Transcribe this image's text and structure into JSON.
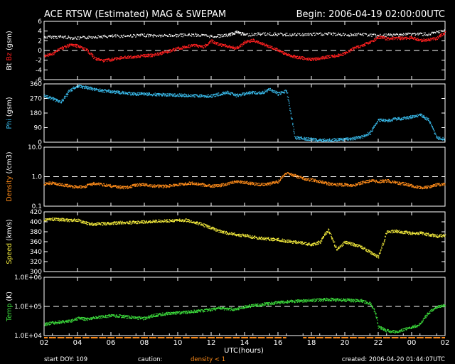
{
  "header": {
    "title": "ACE RTSW (Estimated) MAG & SWEPAM",
    "begin": "Begin: 2006-04-19 02:00:00UTC"
  },
  "footer": {
    "start_doy": "start DOY: 109",
    "caution_label": "caution:",
    "caution_value": "density < 1",
    "created": "created: 2006-04-20 01:44:07UTC"
  },
  "colors": {
    "bt": "#ffffff",
    "bz": "#ff2020",
    "phi": "#38b8e8",
    "density": "#ff8c1a",
    "speed": "#f2ea3c",
    "temp": "#3cdc3c",
    "frame": "#ffffff",
    "caution": "#ff8c1a"
  },
  "chart_data": {
    "type": "scatter",
    "x_axis": {
      "label": "UTC(hours)",
      "tick_labels": [
        "02",
        "04",
        "06",
        "08",
        "10",
        "12",
        "14",
        "16",
        "18",
        "20",
        "22",
        "00",
        "02"
      ]
    },
    "panels": [
      {
        "id": "mag",
        "ylabel_parts": [
          {
            "text": "Bt",
            "color": "#ffffff"
          },
          {
            "text": "Bz",
            "color": "#ff2020"
          },
          {
            "text": "(gsm)",
            "color": "#ffffff"
          }
        ],
        "ylim": [
          -6,
          6
        ],
        "yticks": [
          "6",
          "4",
          "2",
          "0",
          "-2",
          "-4",
          "-6"
        ],
        "reference_line": 0,
        "series": [
          {
            "name": "Bt",
            "color": "#ffffff",
            "x": [
              0,
              1,
              2,
              3,
              4,
              5,
              6,
              7,
              8,
              9,
              10,
              11,
              11.5,
              12,
              13,
              14,
              15,
              16,
              17,
              18,
              19,
              20,
              21,
              22,
              23,
              24
            ],
            "y": [
              2.8,
              2.9,
              2.6,
              2.9,
              3.0,
              3.1,
              3.2,
              3.1,
              3.2,
              3.3,
              3.0,
              3.2,
              3.9,
              3.3,
              3.5,
              3.4,
              3.3,
              3.4,
              3.5,
              3.3,
              3.4,
              3.1,
              3.3,
              3.5,
              3.4,
              4.2
            ]
          },
          {
            "name": "Bz",
            "color": "#ff2020",
            "x": [
              0,
              0.5,
              1,
              1.5,
              2,
              2.5,
              3,
              3.5,
              4,
              4.5,
              5,
              5.5,
              6,
              6.5,
              7,
              7.5,
              8,
              8.5,
              9,
              9.5,
              10,
              10.5,
              11,
              11.5,
              12,
              12.5,
              13,
              13.5,
              14,
              14.5,
              15,
              15.5,
              16,
              16.5,
              17,
              17.5,
              18,
              18.5,
              19,
              19.5,
              20,
              20.5,
              21,
              21.5,
              22,
              22.5,
              23,
              23.5,
              24
            ],
            "y": [
              -1.0,
              -0.6,
              0.5,
              1.2,
              1.0,
              0.3,
              -1.5,
              -2.0,
              -1.8,
              -1.5,
              -1.3,
              -1.2,
              -1.0,
              -0.9,
              -0.5,
              0.0,
              0.5,
              0.8,
              1.2,
              0.8,
              2.0,
              1.2,
              1.0,
              0.5,
              1.8,
              2.2,
              1.5,
              0.8,
              0.2,
              -0.8,
              -1.2,
              -1.5,
              -1.8,
              -1.5,
              -1.2,
              -1.0,
              -0.5,
              0.5,
              1.0,
              1.8,
              2.8,
              2.5,
              2.6,
              2.6,
              2.7,
              2.2,
              2.3,
              2.6,
              3.8
            ]
          }
        ]
      },
      {
        "id": "phi",
        "ylabel_parts": [
          {
            "text": "Phi",
            "color": "#38b8e8"
          },
          {
            "text": "(gsm)",
            "color": "#ffffff"
          }
        ],
        "ylim": [
          0,
          360
        ],
        "yticks": [
          "360",
          "270",
          "180",
          "90",
          "0"
        ],
        "series": [
          {
            "name": "Phi",
            "color": "#38b8e8",
            "x": [
              0,
              0.5,
              1,
              1.5,
              2,
              2.5,
              3,
              3.5,
              4,
              4.5,
              5,
              5.5,
              6,
              6.5,
              7,
              7.5,
              8,
              8.5,
              9,
              9.5,
              10,
              10.5,
              11,
              11.5,
              12,
              12.5,
              13,
              13.5,
              14,
              14.5,
              15,
              15.5,
              16,
              16.5,
              17,
              17.5,
              18,
              18.5,
              19,
              19.5,
              20,
              20.5,
              21,
              21.5,
              22,
              22.5,
              23,
              23.5,
              24
            ],
            "y": [
              290,
              270,
              250,
              320,
              350,
              340,
              330,
              320,
              315,
              310,
              305,
              300,
              300,
              298,
              296,
              294,
              293,
              291,
              289,
              288,
              287,
              300,
              310,
              290,
              300,
              310,
              305,
              330,
              300,
              320,
              30,
              25,
              20,
              15,
              15,
              18,
              20,
              25,
              35,
              60,
              140,
              135,
              145,
              150,
              160,
              170,
              140,
              30,
              20
            ]
          }
        ]
      },
      {
        "id": "density",
        "ylabel_parts": [
          {
            "text": "Density",
            "color": "#ff8c1a"
          },
          {
            "text": "(/cm3)",
            "color": "#ffffff"
          }
        ],
        "scale": "log",
        "ylim": [
          0.1,
          10.0
        ],
        "yticks": [
          "10.0",
          "1.0",
          "0.1"
        ],
        "reference_line": 1.0,
        "series": [
          {
            "name": "Density",
            "color": "#ff8c1a",
            "x": [
              0,
              0.5,
              1,
              1.5,
              2,
              2.5,
              3,
              3.5,
              4,
              4.5,
              5,
              5.5,
              6,
              6.5,
              7,
              7.5,
              8,
              8.5,
              9,
              9.5,
              10,
              10.5,
              11,
              11.5,
              12,
              12.5,
              13,
              13.5,
              14,
              14.5,
              15,
              15.5,
              16,
              16.5,
              17,
              17.5,
              18,
              18.5,
              19,
              19.5,
              20,
              20.5,
              21,
              21.5,
              22,
              22.5,
              23,
              23.5,
              24
            ],
            "y": [
              0.6,
              0.62,
              0.55,
              0.5,
              0.45,
              0.5,
              0.6,
              0.55,
              0.5,
              0.45,
              0.45,
              0.55,
              0.55,
              0.5,
              0.48,
              0.5,
              0.55,
              0.6,
              0.62,
              0.55,
              0.5,
              0.52,
              0.6,
              0.7,
              0.65,
              0.6,
              0.55,
              0.6,
              0.7,
              1.4,
              1.1,
              0.9,
              0.8,
              0.7,
              0.6,
              0.55,
              0.55,
              0.5,
              0.65,
              0.75,
              0.7,
              0.75,
              0.65,
              0.6,
              0.5,
              0.45,
              0.45,
              0.55,
              0.55
            ]
          }
        ]
      },
      {
        "id": "speed",
        "ylabel_parts": [
          {
            "text": "Speed",
            "color": "#f2ea3c"
          },
          {
            "text": "(km/s)",
            "color": "#ffffff"
          }
        ],
        "ylim": [
          300,
          420
        ],
        "yticks": [
          "420",
          "400",
          "380",
          "360",
          "340",
          "320",
          "300"
        ],
        "series": [
          {
            "name": "Speed",
            "color": "#f2ea3c",
            "x": [
              0,
              0.5,
              1,
              1.5,
              2,
              2.5,
              3,
              3.5,
              4,
              4.5,
              5,
              5.5,
              6,
              6.5,
              7,
              7.5,
              8,
              8.5,
              9,
              9.5,
              10,
              10.5,
              11,
              11.5,
              12,
              12.5,
              13,
              13.5,
              14,
              14.5,
              15,
              15.5,
              16,
              16.5,
              17,
              17.5,
              18,
              18.5,
              19,
              19.5,
              20,
              20.5,
              21,
              21.5,
              22,
              22.5,
              23,
              23.5,
              24
            ],
            "y": [
              405,
              406,
              405,
              404,
              404,
              398,
              396,
              397,
              398,
              399,
              399,
              400,
              401,
              402,
              402,
              403,
              404,
              404,
              400,
              395,
              388,
              382,
              378,
              375,
              373,
              370,
              368,
              366,
              365,
              362,
              360,
              358,
              355,
              360,
              385,
              345,
              360,
              355,
              350,
              340,
              330,
              380,
              382,
              380,
              378,
              378,
              375,
              372,
              374
            ]
          }
        ]
      },
      {
        "id": "temp",
        "ylabel_parts": [
          {
            "text": "Temp",
            "color": "#3cdc3c"
          },
          {
            "text": "(K)",
            "color": "#ffffff"
          }
        ],
        "scale": "log",
        "ylim": [
          10000,
          1000000
        ],
        "yticks": [
          "1.0E+06",
          "1.0E+05",
          "1.0E+04"
        ],
        "reference_line": 100000,
        "series": [
          {
            "name": "Temp",
            "color": "#3cdc3c",
            "x": [
              0,
              0.5,
              1,
              1.5,
              2,
              2.5,
              3,
              3.5,
              4,
              4.5,
              5,
              5.5,
              6,
              6.5,
              7,
              7.5,
              8,
              8.5,
              9,
              9.5,
              10,
              10.5,
              11,
              11.5,
              12,
              12.5,
              13,
              13.5,
              14,
              14.5,
              15,
              15.5,
              16,
              16.5,
              17,
              17.5,
              18,
              18.5,
              19,
              19.5,
              20,
              20.5,
              21,
              21.5,
              22,
              22.5,
              23,
              23.5,
              24
            ],
            "y": [
              25000,
              28000,
              30000,
              32000,
              40000,
              38000,
              42000,
              45000,
              50000,
              48000,
              45000,
              42000,
              40000,
              50000,
              55000,
              60000,
              62000,
              65000,
              70000,
              75000,
              80000,
              90000,
              85000,
              80000,
              100000,
              110000,
              120000,
              130000,
              140000,
              150000,
              155000,
              160000,
              165000,
              170000,
              180000,
              175000,
              170000,
              165000,
              160000,
              130000,
              20000,
              15000,
              14000,
              16000,
              20000,
              25000,
              60000,
              100000,
              110000
            ]
          }
        ]
      }
    ]
  }
}
